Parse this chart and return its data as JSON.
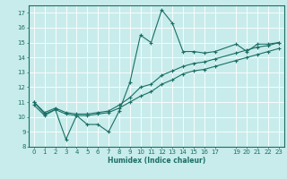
{
  "title": "",
  "xlabel": "Humidex (Indice chaleur)",
  "xlim": [
    -0.5,
    23.5
  ],
  "ylim": [
    8,
    17.5
  ],
  "xticks": [
    0,
    1,
    2,
    3,
    4,
    5,
    6,
    7,
    8,
    9,
    10,
    11,
    12,
    13,
    14,
    15,
    16,
    17,
    19,
    20,
    21,
    22,
    23
  ],
  "yticks": [
    8,
    9,
    10,
    11,
    12,
    13,
    14,
    15,
    16,
    17
  ],
  "bg_color": "#c8eceb",
  "line_color": "#1a6e65",
  "grid_color": "#ffffff",
  "line1_x": [
    0,
    1,
    2,
    3,
    4,
    5,
    6,
    7,
    8,
    9,
    10,
    11,
    12,
    13,
    14,
    15,
    16,
    17,
    19,
    20,
    21,
    22,
    23
  ],
  "line1_y": [
    10.8,
    10.1,
    10.5,
    8.5,
    10.1,
    9.5,
    9.5,
    9.0,
    10.4,
    12.3,
    15.5,
    15.0,
    17.2,
    16.3,
    14.4,
    14.4,
    14.3,
    14.4,
    14.9,
    14.4,
    14.9,
    14.9,
    15.0
  ],
  "line2_x": [
    0,
    1,
    2,
    3,
    4,
    5,
    6,
    7,
    8,
    9,
    10,
    11,
    12,
    13,
    14,
    15,
    16,
    17,
    19,
    20,
    21,
    22,
    23
  ],
  "line2_y": [
    11.0,
    10.3,
    10.6,
    10.3,
    10.2,
    10.2,
    10.3,
    10.4,
    10.8,
    11.3,
    12.0,
    12.2,
    12.8,
    13.1,
    13.4,
    13.6,
    13.7,
    13.9,
    14.3,
    14.5,
    14.7,
    14.8,
    15.0
  ],
  "line3_x": [
    0,
    1,
    2,
    3,
    4,
    5,
    6,
    7,
    8,
    9,
    10,
    11,
    12,
    13,
    14,
    15,
    16,
    17,
    19,
    20,
    21,
    22,
    23
  ],
  "line3_y": [
    11.0,
    10.2,
    10.5,
    10.2,
    10.1,
    10.1,
    10.2,
    10.3,
    10.6,
    11.0,
    11.4,
    11.7,
    12.2,
    12.5,
    12.9,
    13.1,
    13.2,
    13.4,
    13.8,
    14.0,
    14.2,
    14.4,
    14.6
  ],
  "xlabel_fontsize": 5.5,
  "tick_fontsize": 5.0
}
